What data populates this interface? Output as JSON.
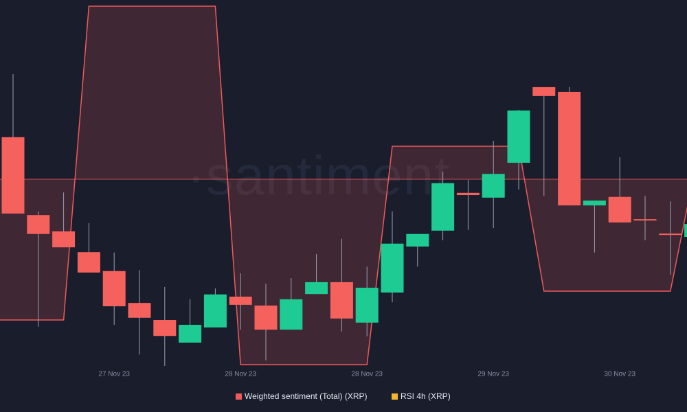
{
  "chart_data": {
    "type": "candlestick",
    "watermark": "·santiment",
    "categories": [
      null,
      null,
      null,
      null,
      "27 Nov 23",
      null,
      null,
      null,
      null,
      "28 Nov 23",
      null,
      null,
      null,
      null,
      "28 Nov 23",
      null,
      null,
      null,
      null,
      "29 Nov 23",
      null,
      null,
      null,
      null,
      "30 Nov 23",
      null,
      null,
      null
    ],
    "candles": {
      "open": [
        63.0,
        42.0,
        37.6,
        32.0,
        26.9,
        18.3,
        13.7,
        7.6,
        11.7,
        20.0,
        17.6,
        11.1,
        20.7,
        23.9,
        13.0,
        21.1,
        33.5,
        37.8,
        48.0,
        46.7,
        56.1,
        76.5,
        75.2,
        44.6,
        46.9,
        40.9,
        37.0,
        36.1
      ],
      "high": [
        80.0,
        43.0,
        48.1,
        39.8,
        31.9,
        27.2,
        22.6,
        19.3,
        22.2,
        26.3,
        23.5,
        25.0,
        31.5,
        35.6,
        28.1,
        43.0,
        36.9,
        53.7,
        51.5,
        62.0,
        70.4,
        76.5,
        76.5,
        45.9,
        57.6,
        47.2,
        45.7,
        44.4
      ],
      "low": [
        42.4,
        11.9,
        33.3,
        26.5,
        12.4,
        4.4,
        1.3,
        7.6,
        11.7,
        11.1,
        2.8,
        11.1,
        20.7,
        10.6,
        9.3,
        18.5,
        28.1,
        35.2,
        38.0,
        38.5,
        48.9,
        47.2,
        44.6,
        31.9,
        40.0,
        35.2,
        25.9,
        33.3
      ],
      "close": [
        42.4,
        36.9,
        33.3,
        26.5,
        17.4,
        14.3,
        9.4,
        12.4,
        20.6,
        17.8,
        11.1,
        19.3,
        23.9,
        14.1,
        22.4,
        34.3,
        36.9,
        50.6,
        47.4,
        53.1,
        70.2,
        74.1,
        44.6,
        45.9,
        40.0,
        40.6,
        36.7,
        39.6
      ]
    },
    "up_color": "#1ecb92",
    "down_color": "#f5625d",
    "sentiment": {
      "name": "Weighted sentiment (Total) (XRP)",
      "color": "#f05a5a",
      "values": [
        -2.05,
        -2.05,
        -2.05,
        2.52,
        2.52,
        2.52,
        2.52,
        2.52,
        2.52,
        -2.7,
        -2.7,
        -2.7,
        -2.7,
        -2.7,
        -2.7,
        0.48,
        0.48,
        0.48,
        0.48,
        0.48,
        0.48,
        -1.63,
        -1.63,
        -1.63,
        -1.63,
        -1.63,
        -1.63,
        0.2
      ]
    },
    "rsi": {
      "name": "RSI 4h (XRP)",
      "color": "#f2b52c"
    },
    "ylim": [
      0,
      100
    ],
    "y2lim": [
      -2.79,
      2.61
    ]
  }
}
